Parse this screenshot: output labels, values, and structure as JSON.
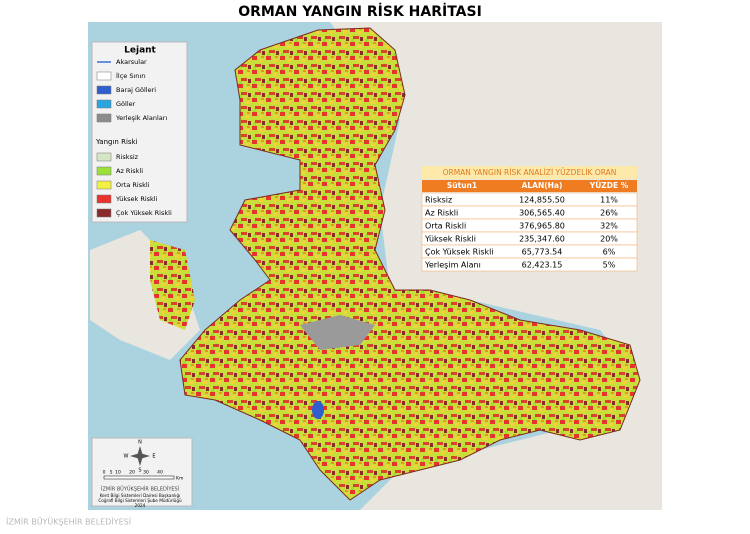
{
  "title": "ORMAN YANGIN RİSK HARİTASI",
  "legend": {
    "title": "Lejant",
    "items": [
      {
        "label": "Akarsular",
        "color": "#3a6fd8"
      },
      {
        "label": "İlçe Sınırı",
        "color": "#ffffff"
      },
      {
        "label": "Baraj Gölleri",
        "color": "#2f5fcf"
      },
      {
        "label": "Göller",
        "color": "#29a6e0"
      },
      {
        "label": "Yerleşik Alanları",
        "color": "#8c8c8c"
      }
    ],
    "risk_title": "Yangın Riski",
    "risk_items": [
      {
        "label": "Risksiz",
        "color": "#d5e6c4"
      },
      {
        "label": "Az Riskli",
        "color": "#9be03a"
      },
      {
        "label": "Orta Riskli",
        "color": "#f3f044"
      },
      {
        "label": "Yüksek Riskli",
        "color": "#e8322d"
      },
      {
        "label": "Çok Yüksek Riskli",
        "color": "#8a2b2b"
      }
    ]
  },
  "table": {
    "title": "ORMAN YANGIN RİSK ANALİZİ YÜZDELİK ORAN",
    "header": [
      "Sütun1",
      "ALAN(Ha)",
      "YÜZDE %"
    ],
    "rows": [
      [
        "Risksiz",
        "124,855.50",
        "11%"
      ],
      [
        "Az Riskli",
        "306,565.40",
        "26%"
      ],
      [
        "Orta Riskli",
        "376,965.80",
        "32%"
      ],
      [
        "Yüksek Riskli",
        "235,347.60",
        "20%"
      ],
      [
        "Çok Yüksek Riskli",
        "65,773.54",
        "6%"
      ],
      [
        "Yerleşim Alanı",
        "62,423.15",
        "5%"
      ]
    ]
  },
  "compass": {
    "n": "N",
    "s": "S",
    "w": "W",
    "e": "E"
  },
  "scale": {
    "labels": [
      "0",
      "5",
      "10",
      "20",
      "30",
      "40"
    ],
    "unit": "Km"
  },
  "credits": {
    "logo": "İZMİR BÜYÜKŞEHİR BELEDİYESİ",
    "lines": [
      "Kent Bilgi Sistemleri Dairesi Başkanlığı",
      "Coğrafi Bilgi Sistemleri Şube Müdürlüğü",
      "2024"
    ]
  },
  "watermark": "İZMİR BÜYÜKŞEHİR BELEDİYESİ"
}
